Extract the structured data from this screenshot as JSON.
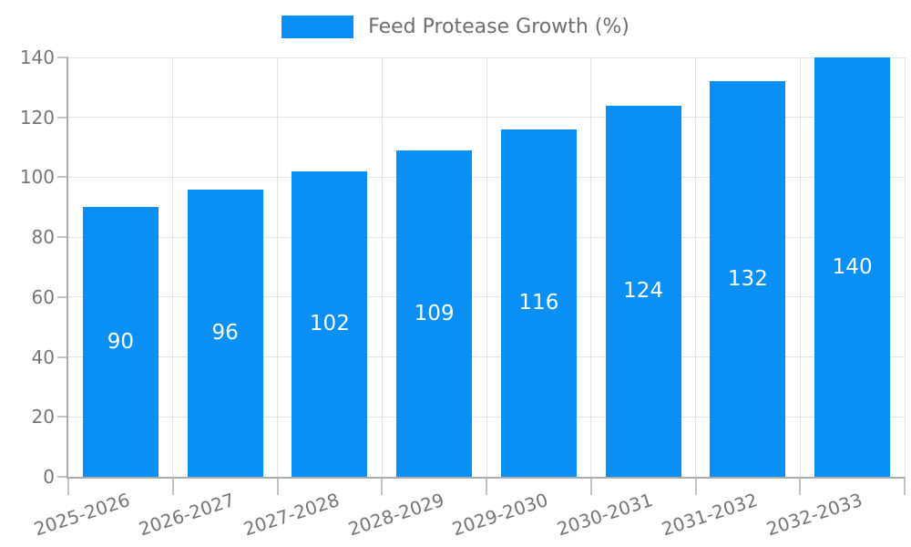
{
  "legend": {
    "label": "Feed Protease Growth (%)",
    "position": "top"
  },
  "colors": {
    "bar": "#0a90f5",
    "grid": "#e3e3e3",
    "axis": "#ababab",
    "tick": "#c2c2c2",
    "tick_text": "#757575",
    "legend_text": "#6e6e6e",
    "value_label_text": "#ffffff"
  },
  "chart_data": {
    "type": "bar",
    "title": "",
    "categories": [
      "2025-2026",
      "2026-2027",
      "2027-2028",
      "2028-2029",
      "2029-2030",
      "2030-2031",
      "2031-2032",
      "2032-2033"
    ],
    "series": [
      {
        "name": "Feed Protease Growth (%)",
        "color": "#0a90f5",
        "values": [
          90,
          96,
          102,
          109,
          116,
          124,
          132,
          140
        ]
      }
    ],
    "value_labels_shown": true,
    "value_label_position": "inside-middle",
    "xlabel": "",
    "ylabel": "",
    "ylim": [
      0,
      140
    ],
    "ytick_step": 20,
    "yticks": [
      "0",
      "20",
      "40",
      "60",
      "80",
      "100",
      "120",
      "140"
    ],
    "grid": true,
    "legend_position": "top"
  }
}
